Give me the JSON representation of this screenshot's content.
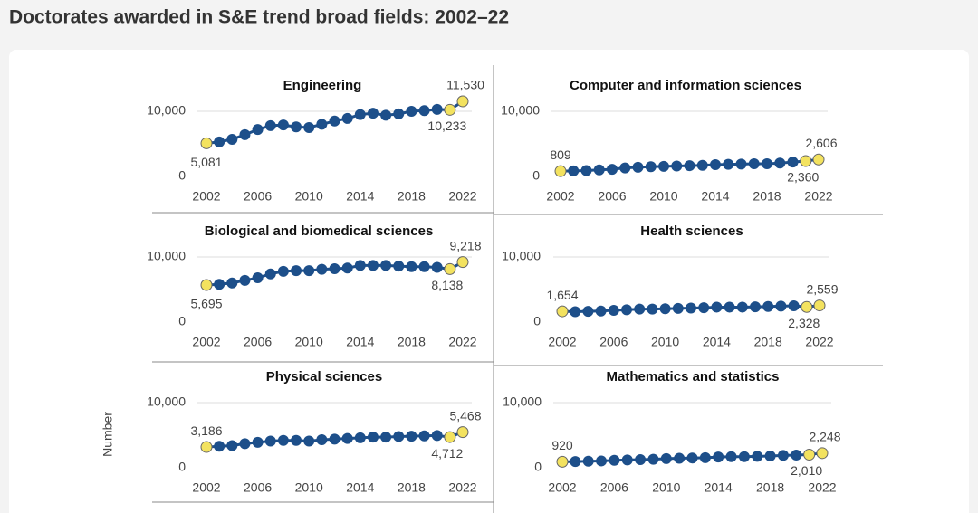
{
  "title": "Doctorates awarded in S&E trend broad fields: 2002–22",
  "ylabel": "Number",
  "chart_data": [
    {
      "type": "line",
      "title": "Engineering",
      "x": [
        2002,
        2003,
        2004,
        2005,
        2006,
        2007,
        2008,
        2009,
        2010,
        2011,
        2012,
        2013,
        2014,
        2015,
        2016,
        2017,
        2018,
        2019,
        2020,
        2021,
        2022
      ],
      "values": [
        5081,
        5300,
        5700,
        6400,
        7200,
        7800,
        7900,
        7600,
        7500,
        8000,
        8500,
        8900,
        9500,
        9700,
        9400,
        9600,
        10000,
        10100,
        10300,
        10233,
        11530
      ],
      "value_labels": [
        "5,081",
        null,
        null,
        null,
        null,
        null,
        null,
        null,
        null,
        null,
        null,
        null,
        null,
        null,
        null,
        null,
        null,
        null,
        null,
        "10,233",
        "11,530"
      ],
      "color": "#1d4f8a",
      "highlight_color": "#f3e25f",
      "xlim": [
        2002,
        2022
      ],
      "xticks": [
        2002,
        2006,
        2010,
        2014,
        2018,
        2022
      ],
      "ylim": [
        0,
        13000
      ],
      "yticks": [
        0,
        {
          "value": 10000,
          "label": "10,000"
        }
      ],
      "grid": true
    },
    {
      "type": "line",
      "title": "Computer and information sciences",
      "x": [
        2002,
        2003,
        2004,
        2005,
        2006,
        2007,
        2008,
        2009,
        2010,
        2011,
        2012,
        2013,
        2014,
        2015,
        2016,
        2017,
        2018,
        2019,
        2020,
        2021,
        2022
      ],
      "values": [
        809,
        850,
        900,
        1000,
        1100,
        1300,
        1400,
        1500,
        1550,
        1600,
        1650,
        1700,
        1800,
        1850,
        1900,
        1950,
        1950,
        2050,
        2200,
        2360,
        2606
      ],
      "value_labels": [
        "809",
        null,
        null,
        null,
        null,
        null,
        null,
        null,
        null,
        null,
        null,
        null,
        null,
        null,
        null,
        null,
        null,
        null,
        null,
        "2,360",
        "2,606"
      ],
      "color": "#1d4f8a",
      "highlight_color": "#f3e25f",
      "xlim": [
        2002,
        2022
      ],
      "xticks": [
        2002,
        2006,
        2010,
        2014,
        2018,
        2022
      ],
      "ylim": [
        0,
        13000
      ],
      "yticks": [
        0,
        {
          "value": 10000,
          "label": "10,000"
        }
      ],
      "grid": true
    },
    {
      "type": "line",
      "title": "Biological and biomedical sciences",
      "x": [
        2002,
        2003,
        2004,
        2005,
        2006,
        2007,
        2008,
        2009,
        2010,
        2011,
        2012,
        2013,
        2014,
        2015,
        2016,
        2017,
        2018,
        2019,
        2020,
        2021,
        2022
      ],
      "values": [
        5695,
        5800,
        6000,
        6400,
        6800,
        7400,
        7800,
        7900,
        7900,
        8100,
        8200,
        8300,
        8700,
        8700,
        8700,
        8600,
        8500,
        8500,
        8400,
        8138,
        9218
      ],
      "value_labels": [
        "5,695",
        null,
        null,
        null,
        null,
        null,
        null,
        null,
        null,
        null,
        null,
        null,
        null,
        null,
        null,
        null,
        null,
        null,
        null,
        "8,138",
        "9,218"
      ],
      "color": "#1d4f8a",
      "highlight_color": "#f3e25f",
      "xlim": [
        2002,
        2022
      ],
      "xticks": [
        2002,
        2006,
        2010,
        2014,
        2018,
        2022
      ],
      "ylim": [
        0,
        13000
      ],
      "yticks": [
        0,
        {
          "value": 10000,
          "label": "10,000"
        }
      ],
      "grid": true
    },
    {
      "type": "line",
      "title": "Health sciences",
      "x": [
        2002,
        2003,
        2004,
        2005,
        2006,
        2007,
        2008,
        2009,
        2010,
        2011,
        2012,
        2013,
        2014,
        2015,
        2016,
        2017,
        2018,
        2019,
        2020,
        2021,
        2022
      ],
      "values": [
        1654,
        1600,
        1650,
        1700,
        1800,
        1900,
        2000,
        2000,
        2050,
        2100,
        2150,
        2200,
        2300,
        2300,
        2300,
        2350,
        2400,
        2450,
        2500,
        2328,
        2559
      ],
      "value_labels": [
        "1,654",
        null,
        null,
        null,
        null,
        null,
        null,
        null,
        null,
        null,
        null,
        null,
        null,
        null,
        null,
        null,
        null,
        null,
        null,
        "2,328",
        "2,559"
      ],
      "color": "#1d4f8a",
      "highlight_color": "#f3e25f",
      "xlim": [
        2002,
        2022
      ],
      "xticks": [
        2002,
        2006,
        2010,
        2014,
        2018,
        2022
      ],
      "ylim": [
        0,
        13000
      ],
      "yticks": [
        0,
        {
          "value": 10000,
          "label": "10,000"
        }
      ],
      "grid": true
    },
    {
      "type": "line",
      "title": "Physical sciences",
      "x": [
        2002,
        2003,
        2004,
        2005,
        2006,
        2007,
        2008,
        2009,
        2010,
        2011,
        2012,
        2013,
        2014,
        2015,
        2016,
        2017,
        2018,
        2019,
        2020,
        2021,
        2022
      ],
      "values": [
        3186,
        3300,
        3400,
        3700,
        3900,
        4100,
        4200,
        4200,
        4100,
        4300,
        4400,
        4500,
        4600,
        4700,
        4700,
        4800,
        4850,
        4900,
        4950,
        4712,
        5468
      ],
      "value_labels": [
        "3,186",
        null,
        null,
        null,
        null,
        null,
        null,
        null,
        null,
        null,
        null,
        null,
        null,
        null,
        null,
        null,
        null,
        null,
        null,
        "4,712",
        "5,468"
      ],
      "color": "#1d4f8a",
      "highlight_color": "#f3e25f",
      "xlim": [
        2002,
        2022
      ],
      "xticks": [
        2002,
        2006,
        2010,
        2014,
        2018,
        2022
      ],
      "ylim": [
        0,
        13000
      ],
      "yticks": [
        0,
        {
          "value": 10000,
          "label": "10,000"
        }
      ],
      "grid": true
    },
    {
      "type": "line",
      "title": "Mathematics and statistics",
      "x": [
        2002,
        2003,
        2004,
        2005,
        2006,
        2007,
        2008,
        2009,
        2010,
        2011,
        2012,
        2013,
        2014,
        2015,
        2016,
        2017,
        2018,
        2019,
        2020,
        2021,
        2022
      ],
      "values": [
        920,
        950,
        1000,
        1050,
        1150,
        1200,
        1250,
        1300,
        1400,
        1450,
        1500,
        1550,
        1650,
        1700,
        1700,
        1750,
        1800,
        1900,
        1950,
        2010,
        2248
      ],
      "value_labels": [
        "920",
        null,
        null,
        null,
        null,
        null,
        null,
        null,
        null,
        null,
        null,
        null,
        null,
        null,
        null,
        null,
        null,
        null,
        null,
        "2,010",
        "2,248"
      ],
      "color": "#1d4f8a",
      "highlight_color": "#f3e25f",
      "xlim": [
        2002,
        2022
      ],
      "xticks": [
        2002,
        2006,
        2010,
        2014,
        2018,
        2022
      ],
      "ylim": [
        0,
        13000
      ],
      "yticks": [
        0,
        {
          "value": 10000,
          "label": "10,000"
        }
      ],
      "grid": true
    }
  ]
}
